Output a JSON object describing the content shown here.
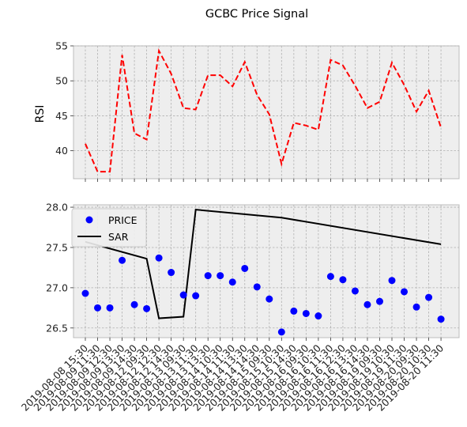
{
  "chart_data": {
    "title": "GCBC Price Signal",
    "x": [
      "2019-08-08 15:30",
      "2019-08-09 11:30",
      "2019-08-09 12:30",
      "2019-08-09 13:30",
      "2019-08-09 14:30",
      "2019-08-12 09:30",
      "2019-08-12 12:30",
      "2019-08-12 14:30",
      "2019-08-13 09:30",
      "2019-08-13 11:30",
      "2019-08-13 13:30",
      "2019-08-14 10:30",
      "2019-08-14 11:30",
      "2019-08-14 13:30",
      "2019-08-14 14:30",
      "2019-08-15 09:30",
      "2019-08-15 10:30",
      "2019-08-15 14:30",
      "2019-08-16 09:30",
      "2019-08-16 10:30",
      "2019-08-16 11:30",
      "2019-08-16 12:30",
      "2019-08-16 13:30",
      "2019-08-16 14:30",
      "2019-08-19 09:30",
      "2019-08-19 10:30",
      "2019-08-19 11:30",
      "2019-08-20 09:30",
      "2019-08-20 10:30",
      "2019-08-20 11:30"
    ],
    "panels": [
      {
        "type": "line",
        "ylabel": "RSI",
        "ylim": [
          36,
          55
        ],
        "yticks": [
          40,
          45,
          50,
          55
        ],
        "grid": true,
        "series": [
          {
            "values": [
              41.0,
              37.0,
              37.0,
              53.7,
              42.5,
              41.6,
              54.3,
              51.0,
              46.1,
              45.9,
              50.8,
              50.8,
              49.2,
              52.7,
              48.0,
              45.2,
              38.1,
              44.0,
              43.6,
              43.0,
              53.0,
              52.2,
              49.3,
              46.1,
              47.0,
              52.6,
              49.4,
              45.6,
              48.6,
              43.3
            ],
            "color": "#ff0000",
            "style": "dashed"
          }
        ]
      },
      {
        "type": "scatter+line",
        "ylim": [
          26.38,
          28.03
        ],
        "yticks": [
          26.5,
          27.0,
          27.5,
          28.0
        ],
        "grid": true,
        "legend_position": "upper-left",
        "series": [
          {
            "name": "PRICE",
            "type": "scatter",
            "color": "#0000ff",
            "values": [
              26.93,
              26.75,
              26.75,
              27.34,
              26.79,
              26.74,
              27.37,
              27.19,
              26.91,
              26.9,
              27.15,
              27.15,
              27.07,
              27.24,
              27.01,
              26.86,
              26.45,
              26.71,
              26.68,
              26.65,
              27.14,
              27.1,
              26.96,
              26.79,
              26.83,
              27.09,
              26.95,
              26.76,
              26.88,
              26.61
            ]
          },
          {
            "name": "SAR",
            "type": "line",
            "color": "#000000",
            "points": [
              [
                0,
                27.57
              ],
              [
                5,
                27.36
              ],
              [
                6,
                26.62
              ],
              [
                8,
                26.64
              ],
              [
                9,
                27.97
              ],
              [
                16,
                27.87
              ],
              [
                29,
                27.54
              ]
            ]
          }
        ]
      }
    ]
  }
}
